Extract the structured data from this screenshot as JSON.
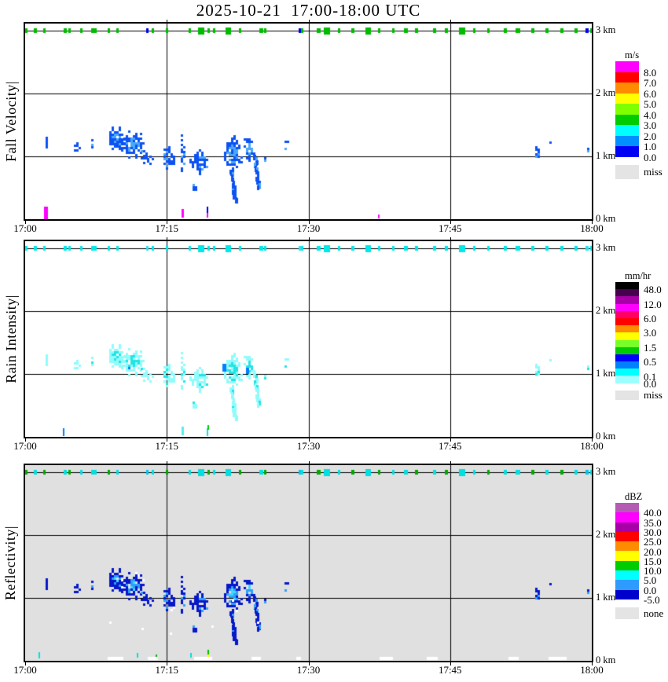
{
  "title": "2025-10-21  17:00-18:00 UTC",
  "chart_data": {
    "type": "heatmap",
    "title": "2025-10-21  17:00-18:00 UTC",
    "x_axis": {
      "label_times": [
        "17:00",
        "17:15",
        "17:30",
        "17:45",
        "18:00"
      ],
      "tick_minutes": [
        0,
        15,
        30,
        45,
        60
      ],
      "range_minutes": [
        0,
        60
      ],
      "gridlines_minutes": [
        15,
        30,
        45
      ]
    },
    "y_axis": {
      "unit": "km",
      "range_km": [
        0,
        3.16
      ],
      "gridlines_km": [
        1,
        2,
        3
      ],
      "labels": [
        "3 km",
        "2 km",
        "1 km",
        "0 km"
      ]
    },
    "panels": [
      {
        "name": "Fall Velocity",
        "name_display": "Fall Velocity|",
        "unit": "m/s",
        "background": "#ffffff",
        "echo_base": "#0d52f2",
        "echo_core": "#49a8fa",
        "dash_colors": [
          "#00bb00",
          "#0000ee",
          "#00bb00"
        ],
        "echo_value_reading": "mostly 0-2 m/s in precipitation band 0.3-1.6 km, 17:02-17:28 and 17:53-18:00"
      },
      {
        "name": "Rain Intensity",
        "name_display": "Rain Intensity|",
        "unit": "mm/hr",
        "background": "#ffffff",
        "echo_base": "#90fbfb",
        "echo_core": "#22e4e4",
        "echo_spot": "#0080ff",
        "dash_colors": [
          "#00e8e8",
          "#33e0f0",
          "#00e8e8"
        ],
        "echo_value_reading": "mostly 0.0-0.5 mm/hr, isolated 0.5-1 mm/hr spots near 17:21 and 17:24"
      },
      {
        "name": "Reflectivity",
        "name_display": "Reflectivity|",
        "unit": "dBZ",
        "background": "#e0e0e0",
        "echo_base": "#0718c8",
        "echo_core": "#2f9ffa",
        "echo_accent": "#41d8ff",
        "echo_white": "#ffffff",
        "dash_colors": [
          "#00e0e0",
          "#00c8e8",
          "#00aa00"
        ],
        "echo_value_reading": "mostly -5 to +10 dBZ; gray background = none (no data)"
      }
    ],
    "melting_layer_dashes": [
      [
        0,
        0.25,
        2
      ],
      [
        0.95,
        1.25,
        0
      ],
      [
        1.9,
        2.15,
        2
      ],
      [
        4.05,
        4.35,
        0
      ],
      [
        4.6,
        4.8,
        2
      ],
      [
        5.8,
        6.0,
        0
      ],
      [
        6.95,
        7.5,
        0
      ],
      [
        8.7,
        8.95,
        2
      ],
      [
        9.65,
        9.9,
        0
      ],
      [
        12.85,
        13.0,
        1
      ],
      [
        13.4,
        13.6,
        0
      ],
      [
        14.9,
        15.05,
        2
      ],
      [
        17.3,
        17.5,
        0
      ],
      [
        18.3,
        19.0,
        0
      ],
      [
        19.3,
        19.5,
        2
      ],
      [
        19.9,
        20.1,
        0
      ],
      [
        21.2,
        21.8,
        0
      ],
      [
        22.6,
        22.8,
        2
      ],
      [
        24.8,
        25.2,
        0
      ],
      [
        25.3,
        25.5,
        2
      ],
      [
        29.0,
        29.2,
        1
      ],
      [
        29.25,
        29.5,
        0
      ],
      [
        30.9,
        31.3,
        2
      ],
      [
        31.6,
        32.3,
        0
      ],
      [
        33.1,
        33.35,
        0
      ],
      [
        34.5,
        34.8,
        2
      ],
      [
        36.0,
        36.6,
        0
      ],
      [
        37.4,
        37.6,
        2
      ],
      [
        38.9,
        39.1,
        0
      ],
      [
        40.1,
        40.5,
        0
      ],
      [
        41.3,
        41.6,
        2
      ],
      [
        43.2,
        43.5,
        0
      ],
      [
        44.4,
        44.7,
        2
      ],
      [
        45.9,
        46.6,
        0
      ],
      [
        47.4,
        47.6,
        0
      ],
      [
        48.9,
        49.1,
        2
      ],
      [
        50.7,
        51.0,
        0
      ],
      [
        51.9,
        52.4,
        0
      ],
      [
        53.6,
        53.9,
        2
      ],
      [
        55.1,
        55.4,
        0
      ],
      [
        56.7,
        57.0,
        2
      ],
      [
        58.2,
        58.5,
        0
      ],
      [
        59.3,
        59.6,
        1
      ],
      [
        59.8,
        60.0,
        0
      ]
    ],
    "echo_blobs": [
      [
        2.1,
        1.22,
        0.18,
        0.1,
        0,
        0.85
      ],
      [
        5.3,
        1.21,
        0.32,
        0.13,
        0,
        0.7
      ],
      [
        6.9,
        1.18,
        0.13,
        0.1,
        0,
        0.8
      ],
      [
        7.5,
        1.17,
        0.1,
        0.09,
        0,
        0.8
      ],
      [
        8.0,
        1.15,
        0.1,
        0.07,
        0,
        0.7
      ],
      [
        9.5,
        1.28,
        1.1,
        0.17,
        1,
        0.8
      ],
      [
        11.3,
        1.2,
        1.3,
        0.21,
        1,
        0.78
      ],
      [
        12.4,
        1.03,
        0.35,
        0.12,
        0,
        0.6
      ],
      [
        13.0,
        0.95,
        0.45,
        0.1,
        0,
        0.65
      ],
      [
        15.0,
        0.97,
        0.7,
        0.17,
        0,
        0.72
      ],
      [
        16.6,
        1.1,
        0.28,
        0.27,
        0,
        0.7
      ],
      [
        18.3,
        0.95,
        0.95,
        0.19,
        0,
        0.72
      ],
      [
        17.85,
        0.52,
        0.28,
        0.08,
        0,
        0.7
      ],
      [
        19.75,
        0.52,
        0.1,
        0.06,
        0,
        0.8
      ],
      [
        19.35,
        1.56,
        0.09,
        0.05,
        0,
        0.9
      ],
      [
        21.8,
        1.05,
        1.0,
        0.27,
        1,
        0.8
      ],
      [
        23.6,
        1.15,
        0.6,
        0.21,
        1,
        0.8
      ],
      [
        25.2,
        1.0,
        0.15,
        0.1,
        0,
        0.6
      ],
      [
        27.6,
        1.2,
        0.3,
        0.13,
        0,
        0.55
      ],
      [
        54.1,
        1.07,
        0.28,
        0.13,
        0,
        0.75
      ],
      [
        55.5,
        1.2,
        0.18,
        0.09,
        0,
        0.7
      ],
      [
        55.0,
        0.96,
        0.1,
        0.05,
        0,
        0.8
      ],
      [
        59.5,
        1.12,
        0.2,
        0.07,
        0,
        0.8
      ]
    ],
    "echo_streaks": [
      [
        [
          21.7,
          0.82
        ],
        [
          21.9,
          0.6
        ],
        [
          22.05,
          0.45
        ],
        [
          22.2,
          0.3
        ]
      ],
      [
        [
          24.2,
          1.05
        ],
        [
          24.4,
          0.85
        ],
        [
          24.55,
          0.65
        ],
        [
          24.62,
          0.52
        ]
      ]
    ],
    "point_marks": [
      {
        "r": [
          2.0,
          2.4,
          0.0,
          0.2
        ],
        "c": [
          "#ff00ff",
          null,
          null
        ]
      },
      {
        "r": [
          4.0,
          4.2,
          0.02,
          0.14
        ],
        "c": [
          null,
          "#0080ff",
          null
        ]
      },
      {
        "r": [
          1.4,
          1.6,
          0.04,
          0.14
        ],
        "c": [
          null,
          null,
          "#00e0e0"
        ]
      },
      {
        "r": [
          16.6,
          16.85,
          0.02,
          0.16
        ],
        "c": [
          "#ff00ff",
          "#55eeee",
          null
        ]
      },
      {
        "r": [
          11.85,
          12.0,
          0.05,
          0.12
        ],
        "c": [
          null,
          null,
          "#00e0e0"
        ]
      },
      {
        "r": [
          13.85,
          14.0,
          0.03,
          0.1
        ],
        "c": [
          null,
          null,
          "#00bb00"
        ]
      },
      {
        "r": [
          19.2,
          19.4,
          0.02,
          0.1
        ],
        "c": [
          "#ff00ff",
          null,
          null
        ]
      },
      {
        "r": [
          19.25,
          19.38,
          0.1,
          0.2
        ],
        "c": [
          "#0000ee",
          null,
          null
        ]
      },
      {
        "r": [
          19.25,
          19.45,
          0.02,
          0.14
        ],
        "c": [
          null,
          "#00e8e8",
          null
        ]
      },
      {
        "r": [
          19.3,
          19.4,
          0.12,
          0.19
        ],
        "c": [
          null,
          "#00cc00",
          null
        ]
      },
      {
        "r": [
          19.3,
          19.42,
          0.02,
          0.1
        ],
        "c": [
          null,
          null,
          "#ffff00"
        ]
      },
      {
        "r": [
          19.3,
          19.42,
          0.1,
          0.17
        ],
        "c": [
          null,
          null,
          "#00bb00"
        ]
      },
      {
        "r": [
          37.4,
          37.6,
          0.02,
          0.08
        ],
        "c": [
          "#ff00ff",
          null,
          null
        ]
      },
      {
        "r": [
          17.45,
          17.6,
          0.04,
          0.12
        ],
        "c": [
          null,
          null,
          "#00e0e0"
        ]
      },
      {
        "r": [
          20.9,
          21.3,
          1.04,
          1.16
        ],
        "c": [
          null,
          "#0080ff",
          null
        ]
      },
      {
        "r": [
          23.4,
          23.7,
          1.0,
          1.1
        ],
        "c": [
          null,
          "#0080ff",
          null
        ]
      }
    ],
    "surface_white_patches": [
      [
        8.7,
        10.4
      ],
      [
        13.0,
        14.1
      ],
      [
        17.9,
        19.8
      ],
      [
        24.0,
        25.0
      ],
      [
        28.7,
        29.2
      ],
      [
        37.5,
        38.9
      ],
      [
        42.5,
        43.7
      ],
      [
        51.2,
        52.3
      ],
      [
        55.4,
        57.3
      ]
    ],
    "white_specks": [
      [
        8.9,
        0.62
      ],
      [
        12.3,
        0.52
      ],
      [
        15.3,
        0.45
      ],
      [
        19.7,
        0.56
      ],
      [
        21.85,
        0.98
      ],
      [
        24.55,
        0.62
      ]
    ]
  },
  "legends": [
    {
      "unit": "m/s",
      "colors": [
        "#ff00ff",
        "#ff0000",
        "#ff8c00",
        "#ffff00",
        "#7fff00",
        "#00cc00",
        "#00ffff",
        "#0090ff",
        "#0000f5"
      ],
      "labels": [
        [
          "8.0",
          1
        ],
        [
          "7.0",
          2
        ],
        [
          "6.0",
          3
        ],
        [
          "5.0",
          4
        ],
        [
          "4.0",
          5
        ],
        [
          "3.0",
          6
        ],
        [
          "2.0",
          7
        ],
        [
          "1.0",
          8
        ],
        [
          "0.0",
          9
        ]
      ],
      "missing": {
        "label": "miss",
        "color": "#e4e4e4"
      }
    },
    {
      "unit": "mm/hr",
      "colors": [
        "#000000",
        "#46004d",
        "#a800a8",
        "#ff00ff",
        "#ff0066",
        "#ff0000",
        "#ff8c00",
        "#ffff00",
        "#76ff2a",
        "#00cc00",
        "#0000ff",
        "#0080ff",
        "#00ffff",
        "#9cffff"
      ],
      "labels": [
        [
          "48.0",
          1
        ],
        [
          "12.0",
          3
        ],
        [
          "6.0",
          5
        ],
        [
          "3.0",
          7
        ],
        [
          "1.5",
          9
        ],
        [
          "0.5",
          11
        ],
        [
          "0.1",
          13
        ],
        [
          "0.0",
          14
        ]
      ],
      "missing": {
        "label": "miss",
        "color": "#e4e4e4"
      }
    },
    {
      "unit": "dBZ",
      "colors": [
        "#b45cb4",
        "#ff00ff",
        "#a800a8",
        "#ff0000",
        "#ff8c00",
        "#ffff00",
        "#00cc00",
        "#00ffff",
        "#2e9bff",
        "#0000cd"
      ],
      "labels": [
        [
          "40.0",
          1
        ],
        [
          "35.0",
          2
        ],
        [
          "30.0",
          3
        ],
        [
          "25.0",
          4
        ],
        [
          "20.0",
          5
        ],
        [
          "15.0",
          6
        ],
        [
          "10.0",
          7
        ],
        [
          "5.0",
          8
        ],
        [
          "0.0",
          9
        ],
        [
          "-5.0",
          10
        ]
      ],
      "missing": {
        "label": "none",
        "color": "#e4e4e4"
      }
    }
  ]
}
